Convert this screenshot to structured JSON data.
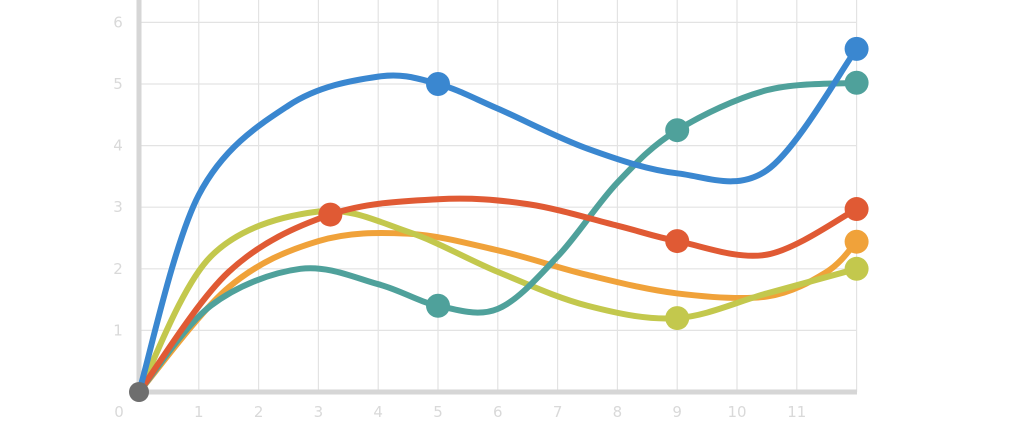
{
  "chart_data": {
    "type": "line",
    "title": "",
    "xlabel": "",
    "ylabel": "",
    "xlim": [
      0,
      12
    ],
    "ylim": [
      0,
      6
    ],
    "x_ticks": [
      0,
      1,
      2,
      3,
      4,
      5,
      6,
      7,
      8,
      9,
      10,
      11
    ],
    "y_ticks": [
      1,
      2,
      3,
      4,
      5,
      6
    ],
    "grid": true,
    "legend": "none",
    "smooth": true,
    "origin_point": {
      "x": 0,
      "y": 0,
      "color": "#6e6e6e"
    },
    "series": [
      {
        "color": "#3a87d0",
        "points": [
          [
            0,
            0
          ],
          [
            5,
            5.0
          ],
          [
            12,
            5.57
          ]
        ]
      },
      {
        "color": "#4fa19b",
        "points": [
          [
            0,
            0
          ],
          [
            5,
            1.4
          ],
          [
            9,
            4.25
          ],
          [
            12,
            5.02
          ]
        ]
      },
      {
        "color": "#e05a34",
        "points": [
          [
            0,
            0
          ],
          [
            3.2,
            2.88
          ],
          [
            9,
            2.45
          ],
          [
            12,
            2.97
          ]
        ]
      },
      {
        "color": "#f0a23a",
        "points": [
          [
            0,
            0
          ],
          [
            12,
            2.44
          ]
        ]
      },
      {
        "color": "#c3c84d",
        "points": [
          [
            0,
            0
          ],
          [
            9,
            1.2
          ],
          [
            12,
            2.0
          ]
        ]
      }
    ],
    "curves": [
      {
        "color": "#3a87d0",
        "path": [
          [
            0,
            0
          ],
          [
            1,
            3.2
          ],
          [
            2.5,
            4.65
          ],
          [
            4,
            5.12
          ],
          [
            5,
            5.0
          ],
          [
            6,
            4.6
          ],
          [
            7.5,
            3.95
          ],
          [
            9,
            3.55
          ],
          [
            10.5,
            3.6
          ],
          [
            12,
            5.57
          ]
        ]
      },
      {
        "color": "#4fa19b",
        "path": [
          [
            0,
            0
          ],
          [
            1.2,
            1.4
          ],
          [
            2.7,
            2.0
          ],
          [
            4,
            1.75
          ],
          [
            5,
            1.4
          ],
          [
            6,
            1.35
          ],
          [
            7,
            2.2
          ],
          [
            8,
            3.4
          ],
          [
            9,
            4.25
          ],
          [
            10.5,
            4.9
          ],
          [
            12,
            5.02
          ]
        ]
      },
      {
        "color": "#e05a34",
        "path": [
          [
            0,
            0
          ],
          [
            1.5,
            1.95
          ],
          [
            3.2,
            2.88
          ],
          [
            5,
            3.13
          ],
          [
            6.5,
            3.05
          ],
          [
            8,
            2.7
          ],
          [
            9,
            2.45
          ],
          [
            10.5,
            2.23
          ],
          [
            12,
            2.97
          ]
        ]
      },
      {
        "color": "#f0a23a",
        "path": [
          [
            0,
            0
          ],
          [
            1.5,
            1.7
          ],
          [
            3,
            2.45
          ],
          [
            4.5,
            2.57
          ],
          [
            6,
            2.3
          ],
          [
            7.5,
            1.9
          ],
          [
            9,
            1.6
          ],
          [
            10.5,
            1.55
          ],
          [
            11.5,
            1.95
          ],
          [
            12,
            2.44
          ]
        ]
      },
      {
        "color": "#c3c84d",
        "path": [
          [
            0,
            0
          ],
          [
            1.2,
            2.2
          ],
          [
            3,
            2.93
          ],
          [
            4.5,
            2.6
          ],
          [
            6,
            1.95
          ],
          [
            7.5,
            1.4
          ],
          [
            9,
            1.2
          ],
          [
            10.5,
            1.6
          ],
          [
            12,
            2.0
          ]
        ]
      }
    ]
  }
}
